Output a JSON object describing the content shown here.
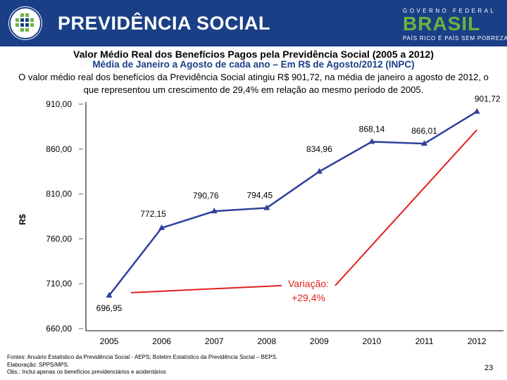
{
  "header": {
    "logo_title": "PREVIDÊNCIA SOCIAL",
    "brand_top": "GOVERNO FEDERAL",
    "brand_main": "BRASIL",
    "brand_sub": "PAÍS RICO É PAÍS SEM POBREZA",
    "colors": {
      "header_bg": "#1a3f86",
      "brand_green": "#6ab43e",
      "brand_yellow": "#f2c200"
    }
  },
  "description": "O valor médio real dos benefícios da Previdência Social atingiu R$ 901,72, na média de janeiro a agosto de 2012, o que representou um crescimento de 29,4% em relação ao mesmo período de 2005.",
  "chart_data": {
    "type": "line",
    "title": "Valor Médio Real dos Benefícios Pagos pela Previdência Social (2005 a 2012)",
    "subtitle": "Média de Janeiro a Agosto de cada ano – Em R$ de Agosto/2012 (INPC)",
    "ylabel": "R$",
    "xlabel": "",
    "categories": [
      "2005",
      "2006",
      "2007",
      "2008",
      "2009",
      "2010",
      "2011",
      "2012"
    ],
    "series": [
      {
        "name": "Valor médio real",
        "values": [
          696.95,
          772.15,
          790.76,
          794.45,
          834.96,
          868.14,
          866.01,
          901.72
        ],
        "labels": [
          "696,95",
          "772,15",
          "790,76",
          "794,45",
          "834,96",
          "868,14",
          "866,01",
          "901,72"
        ],
        "color": "#2e3f9e"
      }
    ],
    "ylim": [
      660,
      910
    ],
    "yticks": [
      660,
      710,
      760,
      810,
      860,
      910
    ],
    "ytick_labels": [
      "660,00",
      "710,00",
      "760,00",
      "810,00",
      "860,00",
      "910,00"
    ],
    "annotation": {
      "line1": "Variação:",
      "line2": "+29,4%",
      "color": "#e02020"
    },
    "grid": false
  },
  "footer": {
    "line1": "Fontes: Anuário Estatístico da Previdência Social - AEPS; Boletim Estatístico da Previdência Social – BEPS.",
    "line2": "Elaboração: SPPS/MPS.",
    "line3": "Obs.: Inclui apenas os benefícios previdenciários e acidentários",
    "page_number": "23"
  }
}
